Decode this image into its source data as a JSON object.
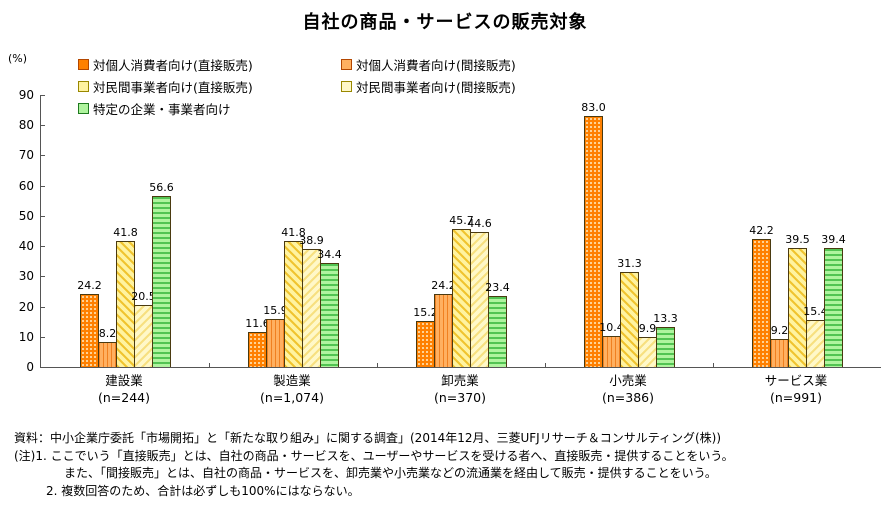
{
  "title": "自社の商品・サービスの販売対象",
  "axis": {
    "unit_label": "(%)"
  },
  "chart_data": {
    "type": "bar",
    "title": "自社の商品・サービスの販売対象",
    "xlabel": "",
    "ylabel": "(%)",
    "ylim": [
      0,
      90
    ],
    "ytick_step": 10,
    "grid": false,
    "legend_position": "top-left",
    "value_labels": true,
    "categories": [
      "建設業",
      "製造業",
      "卸売業",
      "小売業",
      "サービス業"
    ],
    "category_ns": [
      "(n=244)",
      "(n=1,074)",
      "(n=370)",
      "(n=386)",
      "(n=991)"
    ],
    "series": [
      {
        "name": "対個人消費者向け(直接販売)",
        "values": [
          24.2,
          11.6,
          15.2,
          83.0,
          42.2
        ],
        "pattern": "dots",
        "colors": {
          "base": "#FF8000",
          "accent": "#FFD9A0",
          "border": "#B34700"
        }
      },
      {
        "name": "対個人消費者向け(間接販売)",
        "values": [
          8.2,
          15.9,
          24.2,
          10.4,
          9.2
        ],
        "pattern": "vstripes",
        "colors": {
          "base": "#FFB060",
          "accent": "#F08020",
          "border": "#B34700"
        }
      },
      {
        "name": "対民間事業者向け(直接販売)",
        "values": [
          41.8,
          41.8,
          45.7,
          31.3,
          39.5
        ],
        "pattern": "diag-up",
        "colors": {
          "base": "#FFF3A0",
          "accent": "#F0C430",
          "border": "#998800"
        }
      },
      {
        "name": "対民間事業者向け(間接販売)",
        "values": [
          20.5,
          38.9,
          44.6,
          9.9,
          15.4
        ],
        "pattern": "diag-down",
        "colors": {
          "base": "#FFF8C8",
          "accent": "#F7E080",
          "border": "#998800"
        }
      },
      {
        "name": "特定の企業・事業者向け",
        "values": [
          56.6,
          34.4,
          23.4,
          13.3,
          39.4
        ],
        "pattern": "hstripes",
        "colors": {
          "base": "#AFF49E",
          "accent": "#52C452",
          "border": "#1F7A1F"
        }
      }
    ]
  },
  "notes": {
    "line1": "資料：中小企業庁委託「市場開拓」と「新たな取り組み」に関する調査」(2014年12月、三菱UFJリサーチ＆コンサルティング(株))",
    "line2": "(注)1. ここでいう「直接販売」とは、自社の商品・サービスを、ユーザーやサービスを受ける者へ、直接販売・提供することをいう。",
    "line3": "また、「間接販売」とは、自社の商品・サービスを、卸売業や小売業などの流通業を経由して販売・提供することをいう。",
    "line4": "2. 複数回答のため、合計は必ずしも100%にはならない。"
  }
}
